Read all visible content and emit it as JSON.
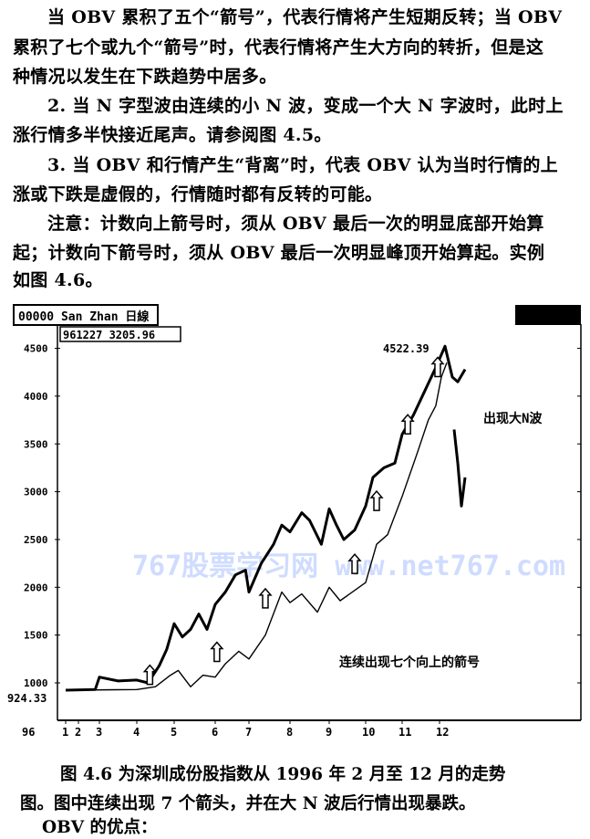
{
  "paragraphs": [
    "当 OBV 累积了五个“箭号”，代表行情将产生短期反转；当 OBV",
    "累积了七个或九个“箭号”时，代表行情将产生大方向的转折，但是这",
    "种情况以发生在下跌趋势中居多。",
    "2. 当 N 字型波由连续的小 N 波，变成一个大 N 字波时，此时上",
    "涨行情多半快接近尾声。请参阅图 4.5。",
    "3. 当 OBV 和行情产生“背离”时，代表 OBV 认为当时行情的上",
    "涨或下跌是虚假的，行情随时都有反转的可能。",
    "注意：计数向上箭号时，须从 OBV 最后一次的明显底部开始算",
    "起；计数向下箭号时，须从 OBV 最后一次明显峰顶开始算起。实例",
    "如图 4.6。"
  ],
  "chart_data": {
    "type": "line",
    "header_label": "00000  San Zhan 日線",
    "cursor_readout": "961227  3205.96",
    "corner_badge": "",
    "x_start_label": "96",
    "x_ticks": [
      "1",
      "2",
      "3",
      "4",
      "5",
      "6",
      "7",
      "8",
      "9",
      "10",
      "11",
      "12"
    ],
    "y_ticks": [
      "1000",
      "1500",
      "2000",
      "2500",
      "3000",
      "3500",
      "4000",
      "4500"
    ],
    "ylim": [
      700,
      4700
    ],
    "low_label": "924.33",
    "high_label": "4522.39",
    "annotations": [
      "出现大N波",
      "连续出现七个向上的箭号"
    ],
    "watermark": "767股票学习网 www.net767.com",
    "series": [
      {
        "points": [
          [
            1,
            924
          ],
          [
            2.8,
            930
          ],
          [
            3,
            1060
          ],
          [
            3.5,
            1020
          ],
          [
            4,
            1030
          ],
          [
            4.3,
            1000
          ],
          [
            4.6,
            1180
          ],
          [
            4.8,
            1350
          ],
          [
            5,
            1620
          ],
          [
            5.2,
            1480
          ],
          [
            5.4,
            1560
          ],
          [
            5.6,
            1720
          ],
          [
            5.8,
            1560
          ],
          [
            6,
            1820
          ],
          [
            6.3,
            1950
          ],
          [
            6.6,
            2130
          ],
          [
            6.9,
            2180
          ],
          [
            7,
            1950
          ],
          [
            7.3,
            2250
          ],
          [
            7.6,
            2450
          ],
          [
            7.8,
            2650
          ],
          [
            8,
            2580
          ],
          [
            8.3,
            2780
          ],
          [
            8.5,
            2700
          ],
          [
            8.8,
            2450
          ],
          [
            9,
            2820
          ],
          [
            9.2,
            2650
          ],
          [
            9.4,
            2500
          ],
          [
            9.7,
            2600
          ],
          [
            10,
            2850
          ],
          [
            10.2,
            3150
          ],
          [
            10.5,
            3250
          ],
          [
            10.8,
            3300
          ],
          [
            11,
            3600
          ],
          [
            11.3,
            3800
          ],
          [
            11.6,
            4050
          ],
          [
            11.9,
            4300
          ],
          [
            12.15,
            4522
          ],
          [
            12.35,
            4200
          ],
          [
            12.5,
            4150
          ],
          [
            12.7,
            4280
          ]
        ]
      },
      {
        "points": [
          [
            12.4,
            3650
          ],
          [
            12.5,
            3300
          ],
          [
            12.6,
            2850
          ],
          [
            12.7,
            3150
          ]
        ]
      },
      {
        "points": [
          [
            1,
            924
          ],
          [
            4,
            930
          ],
          [
            4.5,
            960
          ],
          [
            4.9,
            1080
          ],
          [
            5.1,
            1130
          ],
          [
            5.4,
            960
          ],
          [
            5.7,
            1080
          ],
          [
            6,
            1060
          ],
          [
            6.3,
            1200
          ],
          [
            6.7,
            1330
          ],
          [
            7,
            1250
          ],
          [
            7.4,
            1500
          ],
          [
            7.8,
            1950
          ],
          [
            8,
            1840
          ],
          [
            8.3,
            1930
          ],
          [
            8.7,
            1740
          ],
          [
            9,
            2000
          ],
          [
            9.3,
            1860
          ],
          [
            10,
            2050
          ],
          [
            10.3,
            2450
          ],
          [
            10.6,
            2550
          ],
          [
            11,
            2950
          ],
          [
            11.4,
            3400
          ],
          [
            11.7,
            3750
          ],
          [
            11.9,
            3900
          ],
          [
            12.05,
            4200
          ],
          [
            12.2,
            4350
          ]
        ]
      }
    ],
    "arrows": [
      [
        4.35,
        1080
      ],
      [
        6.05,
        1320
      ],
      [
        7.4,
        1880
      ],
      [
        9.7,
        2240
      ],
      [
        10.3,
        2900
      ],
      [
        11.15,
        3700
      ],
      [
        11.95,
        4300
      ]
    ]
  },
  "caption": {
    "line1": "图 4.6    为深圳成份股指数从 1996 年 2 月至 12 月的走势",
    "line2": "图。图中连续出现 7 个箭头，并在大 N 波后行情出现暴跌。",
    "line3": "OBV 的优点："
  }
}
